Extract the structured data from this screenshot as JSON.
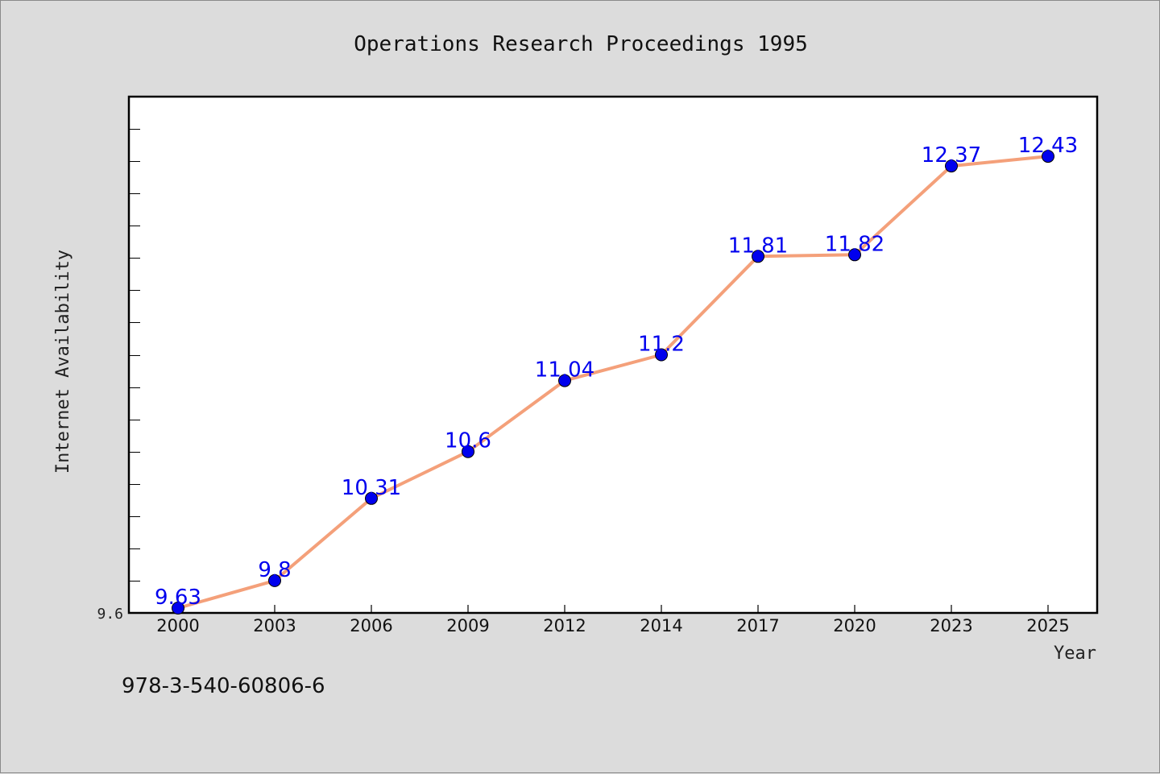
{
  "chart_data": {
    "type": "line",
    "title": "Operations Research Proceedings 1995",
    "xlabel": "Year",
    "ylabel": "Internet Availability",
    "categories": [
      "2000",
      "2003",
      "2006",
      "2009",
      "2012",
      "2014",
      "2017",
      "2020",
      "2023",
      "2025"
    ],
    "values": [
      9.63,
      9.8,
      10.31,
      10.6,
      11.04,
      11.2,
      11.81,
      11.82,
      12.37,
      12.43
    ],
    "data_labels": [
      "9.63",
      "9.8",
      "10.31",
      "10.6",
      "11.04",
      "11.2",
      "11.81",
      "11.82",
      "12.37",
      "12.43"
    ],
    "y_tick_label": "9.6",
    "ylim": [
      9.6,
      12.8
    ],
    "grid": false,
    "legend": "none",
    "colors": {
      "line": "#f4a07a",
      "marker": "#0000ee",
      "data_label": "#0000ee",
      "plot_background": "#ffffff",
      "page_background": "#dcdcdc"
    }
  },
  "footer": {
    "isbn": "978-3-540-60806-6"
  }
}
